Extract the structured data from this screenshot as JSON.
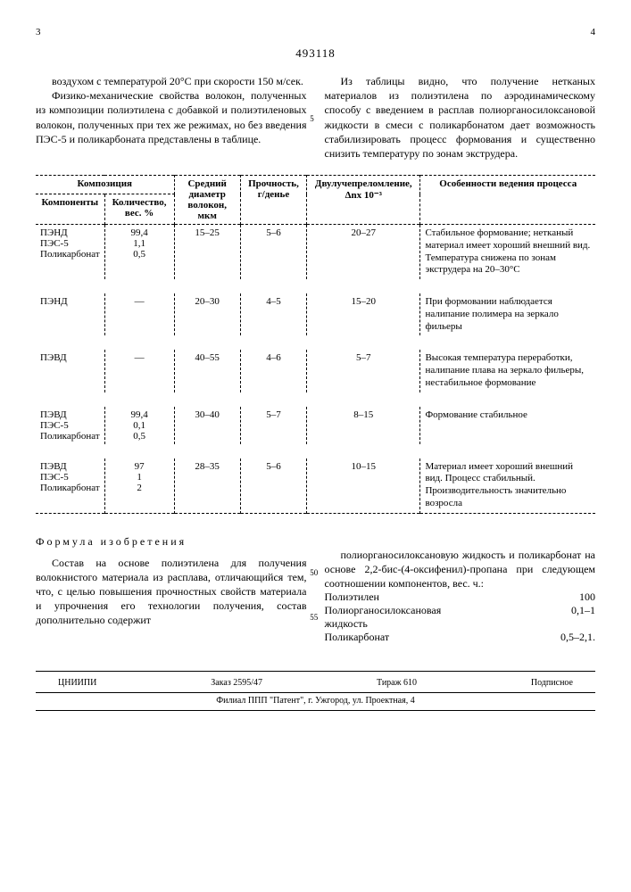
{
  "doc_number": "493118",
  "page_left": "3",
  "page_right": "4",
  "line_marker_5": "5",
  "line_marker_50": "50",
  "line_marker_55": "55",
  "p_left_1": "воздухом с температурой 20°С при скорости 150 м/сек.",
  "p_left_2": "Физико-механические свойства волокон, полученных из композиции полиэтилена с добавкой и полиэтиленовых волокон, полученных при тех же режимах, но без введения ПЭС-5 и поликарбоната представлены в таблице.",
  "p_right_1": "Из таблицы видно, что получение нетканых материалов из полиэтилена по аэродинамическому способу с введением в расплав полиорганосилоксановой жидкости в смеси с поликарбонатом дает возможность стабилизировать процесс формования и существенно снизить температуру по зонам экструдера.",
  "table": {
    "head": {
      "composition": "Композиция",
      "components": "Компоненты",
      "qty": "Количество, вес. %",
      "diameter": "Средний диаметр волокон, мкм",
      "strength": "Прочность, г/денье",
      "biref": "Двулучепреломление, Δnx 10⁻³",
      "process": "Особенности ведения процесса"
    },
    "rows": [
      {
        "components": [
          "ПЭНД",
          "ПЭС-5",
          "Поликарбонат"
        ],
        "qty": [
          "99,4",
          "1,1",
          "0,5"
        ],
        "diameter": "15–25",
        "strength": "5–6",
        "biref": "20–27",
        "process": "Стабильное формование; нетканый материал имеет хороший внешний вид. Температура снижена по зонам экструдера на 20–30°С"
      },
      {
        "components": [
          "ПЭНД"
        ],
        "qty": [
          "—"
        ],
        "diameter": "20–30",
        "strength": "4–5",
        "biref": "15–20",
        "process": "При формовании наблюдается налипание полимера на зеркало фильеры"
      },
      {
        "components": [
          "ПЭВД"
        ],
        "qty": [
          "—"
        ],
        "diameter": "40–55",
        "strength": "4–6",
        "biref": "5–7",
        "process": "Высокая температура переработки, налипание плава на зеркало фильеры, нестабильное формование"
      },
      {
        "components": [
          "ПЭВД",
          "ПЭС-5",
          "Поликарбонат"
        ],
        "qty": [
          "99,4",
          "0,1",
          "0,5"
        ],
        "diameter": "30–40",
        "strength": "5–7",
        "biref": "8–15",
        "process": "Формование стабильное"
      },
      {
        "components": [
          "ПЭВД",
          "ПЭС-5",
          "Поликарбонат"
        ],
        "qty": [
          "97",
          "1",
          "2"
        ],
        "diameter": "28–35",
        "strength": "5–6",
        "biref": "10–15",
        "process": "Материал имеет хороший внешний вид. Процесс стабильный. Производительность значительно возросла"
      }
    ]
  },
  "formula_title": "Формула изобретения",
  "formula_left": "Состав на основе полиэтилена для получения волокнистого материала из расплава, отличающийся тем, что, с целью повышения прочностных свойств материала и упрочнения его технологии получения, состав дополнительно содержит",
  "formula_right_1": "полиорганосилоксановую жидкость и поликарбонат на основе 2,2-бис-(4-оксифенил)-пропана при следующем соотношении компонентов, вес. ч.:",
  "ratios": [
    {
      "name": "Полиэтилен",
      "val": "100"
    },
    {
      "name": "Полиорганосилоксановая жидкость",
      "val": "0,1–1"
    },
    {
      "name": "Поликарбонат",
      "val": "0,5–2,1."
    }
  ],
  "footer": {
    "org": "ЦНИИПИ",
    "order": "Заказ 2595/47",
    "tirazh": "Тираж 610",
    "sign": "Подписное",
    "addr": "Филиал ППП \"Патент\", г. Ужгород, ул. Проектная, 4"
  }
}
